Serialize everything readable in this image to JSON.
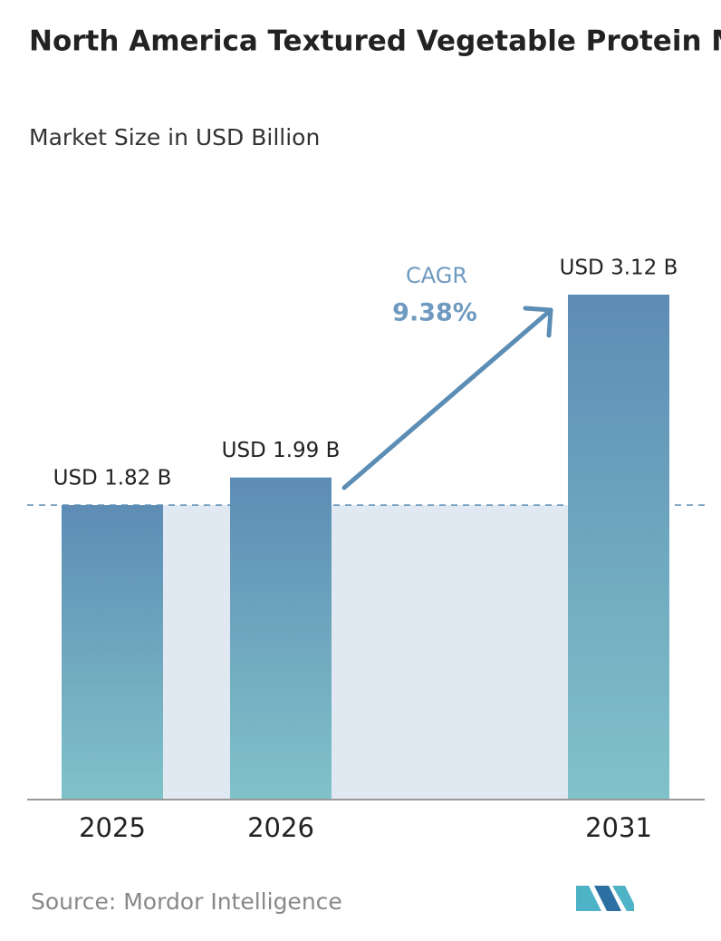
{
  "chart_data": {
    "type": "bar",
    "title": "North America Textured Vegetable Protein Market",
    "subtitle": "Market Size in USD Billion",
    "categories": [
      "2025",
      "2026",
      "2031"
    ],
    "values": [
      1.82,
      1.99,
      3.12
    ],
    "value_labels": [
      "USD 1.82 B",
      "USD 1.99 B",
      "USD 3.12 B"
    ],
    "annotations": {
      "cagr_label": "CAGR",
      "cagr_value": "9.38%"
    },
    "source": "Source:  Mordor Intelligence"
  }
}
